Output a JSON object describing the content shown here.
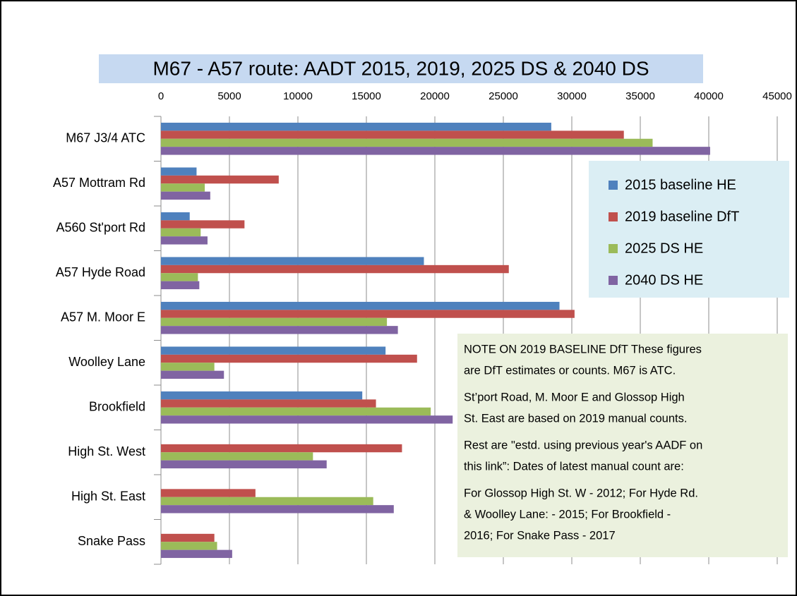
{
  "chart_data": {
    "type": "bar",
    "orientation": "horizontal",
    "title": "M67 - A57 route:  AADT 2015, 2019, 2025 DS & 2040 DS",
    "categories": [
      "M67 J3/4  ATC",
      "A57 Mottram Rd",
      "A560 St'port Rd",
      "A57 Hyde Road",
      "A57 M. Moor E",
      "Woolley Lane",
      "Brookfield",
      "High St. West",
      "High St. East",
      "Snake Pass"
    ],
    "series": [
      {
        "name": "2015 baseline HE",
        "color": "#4f81bd",
        "values": [
          28500,
          2600,
          2100,
          19200,
          29100,
          16400,
          14700,
          null,
          null,
          null
        ]
      },
      {
        "name": "2019 baseline DfT",
        "color": "#c0504d",
        "values": [
          33800,
          8600,
          6100,
          25400,
          30200,
          18700,
          15700,
          17600,
          6900,
          3900
        ]
      },
      {
        "name": "2025 DS HE",
        "color": "#9bbb59",
        "values": [
          35900,
          3200,
          2900,
          2700,
          16500,
          3900,
          19700,
          11100,
          15500,
          4100
        ]
      },
      {
        "name": "2040 DS HE",
        "color": "#8064a2",
        "values": [
          40100,
          3600,
          3400,
          2800,
          17300,
          4600,
          21300,
          12100,
          17000,
          5200
        ]
      }
    ],
    "xlim": [
      0,
      45000
    ],
    "xticks": [
      0,
      5000,
      10000,
      15000,
      20000,
      25000,
      30000,
      35000,
      40000,
      45000
    ],
    "grid": true,
    "legend": "right",
    "annotation": [
      "NOTE ON 2019 BASELINE DfT  These figures",
      "are  DfT estimates or counts.     M67 is ATC.",
      "St’port Road, M. Moor E and  Glossop High",
      "St. East are based on 2019 manual counts.",
      "Rest are \"estd. using previous year's AADF on",
      "this link”: Dates of latest manual count are:",
      "For Glossop High St. W - 2012;    For Hyde Rd.",
      "& Woolley Lane: - 2015;     For Brookfield -",
      "2016; For Snake Pass - 2017"
    ]
  }
}
